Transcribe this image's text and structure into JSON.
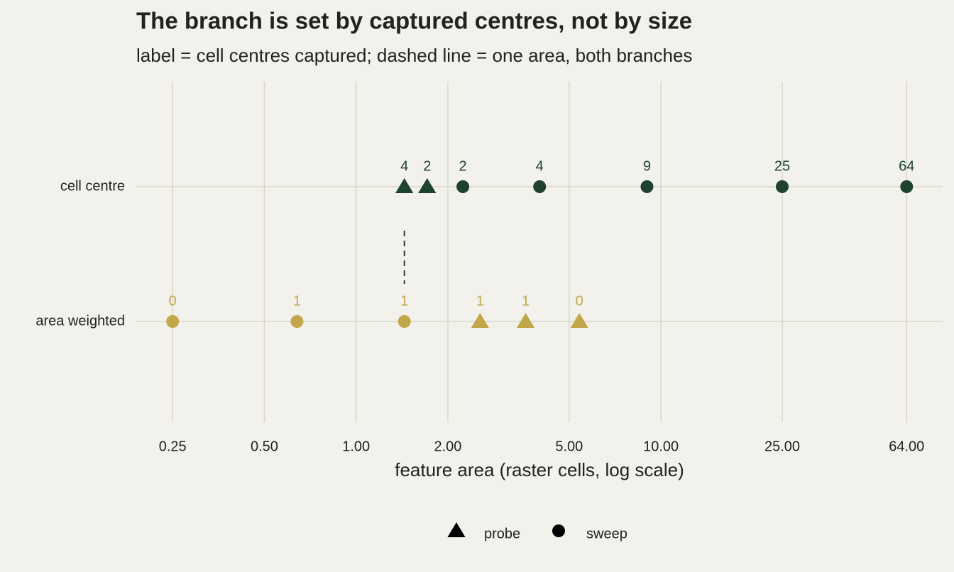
{
  "chart_data": {
    "type": "dotplot",
    "title": "The branch is set by captured centres, not by size",
    "subtitle": "label = cell centres captured; dashed line = one area, both branches",
    "x_label": "feature area (raster cells, log scale)",
    "x_log": true,
    "xlim": [
      0.19,
      84
    ],
    "xticks": [
      {
        "value": 0.25,
        "label": "0.25"
      },
      {
        "value": 0.5,
        "label": "0.50"
      },
      {
        "value": 1,
        "label": "1.00"
      },
      {
        "value": 2,
        "label": "2.00"
      },
      {
        "value": 5,
        "label": "5.00"
      },
      {
        "value": 10,
        "label": "10.00"
      },
      {
        "value": 25,
        "label": "25.00"
      },
      {
        "value": 64,
        "label": "64.00"
      }
    ],
    "grid": true,
    "categories": [
      "cell centre",
      "area weighted"
    ],
    "category_colors": [
      "#1f4230",
      "#c2a64a"
    ],
    "reference_x": 1.44,
    "legend_position": "bottom",
    "series": [
      {
        "name": "probe",
        "marker": "triangle",
        "color": "#000000",
        "x": [
          1.44,
          1.71,
          2.55,
          3.6,
          5.4
        ],
        "rows": [
          0,
          0,
          1,
          1,
          1
        ],
        "values": [
          4,
          2,
          1,
          1,
          0
        ]
      },
      {
        "name": "sweep",
        "marker": "circle",
        "color": "#000000",
        "x": [
          2.24,
          4,
          9,
          25,
          64,
          0.25,
          0.64,
          1.44
        ],
        "rows": [
          0,
          0,
          0,
          0,
          0,
          1,
          1,
          1
        ],
        "values": [
          2,
          4,
          9,
          25,
          64,
          0,
          1,
          1
        ]
      }
    ]
  }
}
